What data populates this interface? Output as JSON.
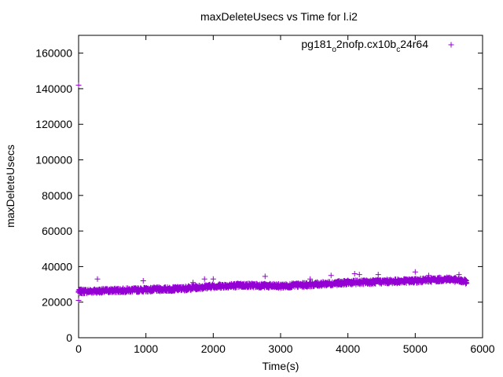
{
  "chart_data": {
    "type": "scatter",
    "title": "maxDeleteUsecs vs Time for l.i2",
    "xlabel": "Time(s)",
    "ylabel": "maxDeleteUsecs",
    "xlim": [
      0,
      6000
    ],
    "ylim": [
      0,
      170000
    ],
    "x_ticks": [
      "0",
      "1000",
      "2000",
      "3000",
      "4000",
      "5000",
      "6000"
    ],
    "y_ticks": [
      "0",
      "20000",
      "40000",
      "60000",
      "80000",
      "100000",
      "120000",
      "140000",
      "160000"
    ],
    "grid": false,
    "legend": {
      "position": "top-right"
    },
    "series": [
      {
        "name": "pg181_o2nofp.cx10b_c24r64",
        "name_parts": {
          "a": "pg181",
          "s1": "o",
          "b": "2nofp.cx10b",
          "s2": "c",
          "c": "24r64"
        },
        "color": "#9400d3",
        "marker": "plus",
        "trend": [
          [
            0,
            26000
          ],
          [
            500,
            26500
          ],
          [
            1000,
            27000
          ],
          [
            1500,
            27500
          ],
          [
            2000,
            29000
          ],
          [
            2500,
            29500
          ],
          [
            3000,
            29000
          ],
          [
            3500,
            30000
          ],
          [
            4000,
            31000
          ],
          [
            4500,
            31500
          ],
          [
            5000,
            32000
          ],
          [
            5500,
            33000
          ],
          [
            5760,
            31500
          ]
        ],
        "outliers": [
          [
            0,
            142000
          ],
          [
            0,
            21000
          ],
          [
            280,
            33000
          ],
          [
            960,
            32000
          ],
          [
            1700,
            31000
          ],
          [
            1870,
            33000
          ],
          [
            2000,
            33000
          ],
          [
            2770,
            34500
          ],
          [
            3440,
            33000
          ],
          [
            3750,
            35000
          ],
          [
            4100,
            36000
          ],
          [
            4170,
            35500
          ],
          [
            4450,
            35500
          ],
          [
            5000,
            37000
          ],
          [
            5200,
            35000
          ],
          [
            5650,
            35500
          ]
        ]
      }
    ]
  }
}
